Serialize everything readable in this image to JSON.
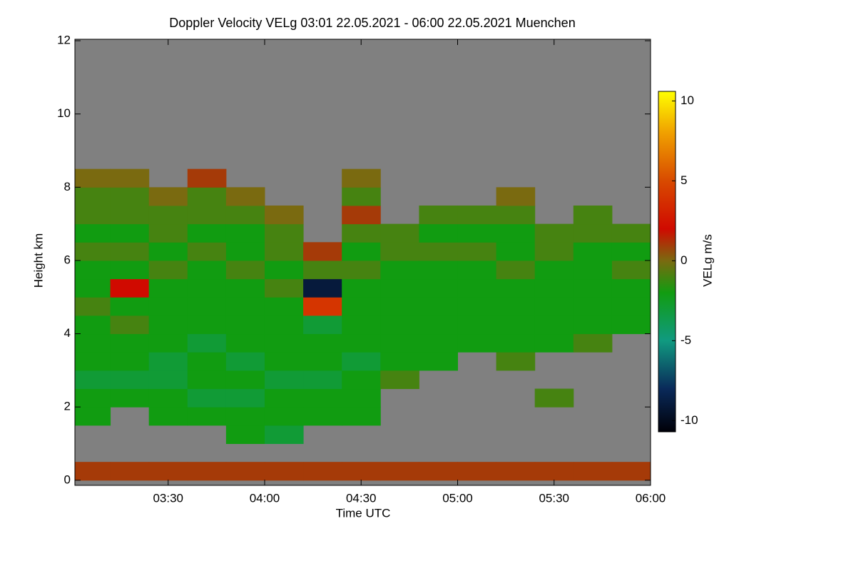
{
  "chart_data": {
    "type": "heatmap",
    "title": "Doppler Velocity VELg   03:01 22.05.2021 - 06:00 22.05.2021 Muenchen",
    "xlabel": "Time UTC",
    "ylabel": "Height km",
    "colorbar_label": "VELg m/s",
    "xlim": [
      3.0167,
      6.0
    ],
    "xticks": [
      {
        "value": 3.5,
        "label": "03:30"
      },
      {
        "value": 4.0,
        "label": "04:00"
      },
      {
        "value": 4.5,
        "label": "04:30"
      },
      {
        "value": 5.0,
        "label": "05:00"
      },
      {
        "value": 5.5,
        "label": "05:30"
      },
      {
        "value": 6.0,
        "label": "06:00"
      }
    ],
    "ylim": [
      -0.14,
      12.04
    ],
    "yticks": [
      0,
      2,
      4,
      6,
      8,
      10,
      12
    ],
    "zlim": [
      -10.7,
      10.6
    ],
    "zticks": [
      -10,
      -5,
      0,
      5,
      10
    ],
    "nodata_color": "#808080",
    "colormap": [
      [
        -10.7,
        "#000008"
      ],
      [
        -8,
        "#0a2a5a"
      ],
      [
        -5,
        "#109a80"
      ],
      [
        -2,
        "#119c11"
      ],
      [
        0,
        "#7a6a10"
      ],
      [
        2,
        "#d00a00"
      ],
      [
        5,
        "#d84a00"
      ],
      [
        8,
        "#f0a000"
      ],
      [
        10.6,
        "#ffff00"
      ]
    ],
    "x": [
      3.1,
      3.3,
      3.5,
      3.7,
      3.9,
      4.1,
      4.3,
      4.5,
      4.7,
      4.9,
      5.1,
      5.3,
      5.5,
      5.7,
      5.9
    ],
    "y": [
      0.25,
      0.75,
      1.25,
      1.75,
      2.25,
      2.75,
      3.25,
      3.75,
      4.25,
      4.75,
      5.25,
      5.75,
      6.25,
      6.75,
      7.25,
      7.75,
      8.25,
      8.75,
      9.25,
      9.75,
      10.25,
      10.75,
      11.25,
      11.75
    ],
    "z": [
      [
        1,
        null,
        null,
        -2,
        -2,
        -3,
        -2,
        -2,
        -2,
        -1,
        -2,
        -2,
        -1,
        -2,
        -1,
        -1,
        0,
        null,
        null,
        null,
        null,
        null,
        null,
        null
      ],
      [
        1,
        null,
        null,
        null,
        -2,
        -3,
        -2,
        -2,
        -1,
        -2,
        2,
        -2,
        -1,
        -2,
        -1,
        -1,
        0,
        null,
        null,
        null,
        null,
        null,
        null,
        null
      ],
      [
        1,
        null,
        null,
        -2,
        -2,
        -3,
        -3,
        -2,
        -2,
        -2,
        -2,
        -1,
        -2,
        -1,
        -1,
        0,
        null,
        null,
        null,
        null,
        null,
        null,
        null,
        null
      ],
      [
        1,
        null,
        null,
        -2,
        -3,
        -2,
        -2,
        -3,
        -2,
        -2,
        -2,
        -2,
        -1,
        -2,
        -1,
        -1,
        1,
        null,
        null,
        null,
        null,
        null,
        null,
        null
      ],
      [
        1,
        null,
        -2,
        -2,
        -3,
        -2,
        -3,
        -2,
        -2,
        -2,
        -2,
        -1,
        -2,
        -2,
        -1,
        0,
        null,
        null,
        null,
        null,
        null,
        null,
        null,
        null
      ],
      [
        1,
        null,
        -3,
        -2,
        -2,
        -3,
        -2,
        -2,
        -2,
        -2,
        -1,
        -2,
        -1,
        -1,
        0,
        null,
        null,
        null,
        null,
        null,
        null,
        null,
        null,
        null
      ],
      [
        1,
        null,
        null,
        -2,
        -2,
        -3,
        -2,
        -2,
        -3,
        4,
        -9,
        -1,
        1,
        null,
        null,
        null,
        null,
        null,
        null,
        null,
        null,
        null,
        null,
        null
      ],
      [
        1,
        null,
        null,
        -2,
        -2,
        -2,
        -3,
        -2,
        -2,
        -2,
        -2,
        -1,
        -2,
        -1,
        1,
        -1,
        0,
        null,
        null,
        null,
        null,
        null,
        null,
        null
      ],
      [
        1,
        null,
        null,
        null,
        null,
        -1,
        -2,
        -2,
        -2,
        -2,
        -2,
        -2,
        -1,
        -1,
        null,
        null,
        null,
        null,
        null,
        null,
        null,
        null,
        null,
        null
      ],
      [
        1,
        null,
        null,
        null,
        null,
        null,
        -2,
        -2,
        -2,
        -2,
        -2,
        -2,
        -1,
        -2,
        -1,
        null,
        null,
        null,
        null,
        null,
        null,
        null,
        null,
        null
      ],
      [
        1,
        null,
        null,
        null,
        null,
        null,
        null,
        -2,
        -2,
        -2,
        -2,
        -2,
        -1,
        -2,
        -1,
        null,
        null,
        null,
        null,
        null,
        null,
        null,
        null,
        null
      ],
      [
        1,
        null,
        null,
        null,
        null,
        null,
        -1,
        -2,
        -2,
        -2,
        -2,
        -1,
        -2,
        -2,
        -1,
        0,
        null,
        null,
        null,
        null,
        null,
        null,
        null,
        null
      ],
      [
        1,
        null,
        null,
        null,
        -1,
        null,
        null,
        -2,
        -2,
        -2,
        -2,
        -2,
        -1,
        -1,
        null,
        null,
        null,
        null,
        null,
        null,
        null,
        null,
        null,
        null
      ],
      [
        1,
        null,
        null,
        null,
        null,
        null,
        null,
        -1,
        -2,
        -2,
        -2,
        -2,
        -2,
        -1,
        -1,
        null,
        null,
        null,
        null,
        null,
        null,
        null,
        null,
        null
      ],
      [
        1,
        null,
        null,
        null,
        null,
        null,
        null,
        null,
        -2,
        -2,
        -2,
        -1,
        -2,
        -1,
        null,
        null,
        null,
        null,
        null,
        null,
        null,
        null,
        null,
        null
      ]
    ]
  }
}
